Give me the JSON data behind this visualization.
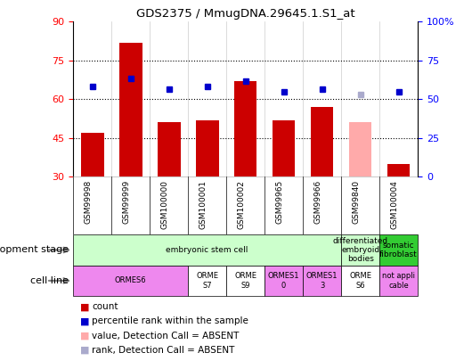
{
  "title": "GDS2375 / MmugDNA.29645.1.S1_at",
  "samples": [
    "GSM99998",
    "GSM99999",
    "GSM100000",
    "GSM100001",
    "GSM100002",
    "GSM99965",
    "GSM99966",
    "GSM99840",
    "GSM100004"
  ],
  "bar_values": [
    47,
    82,
    51,
    52,
    67,
    52,
    57,
    51,
    35
  ],
  "bar_colors": [
    "#cc0000",
    "#cc0000",
    "#cc0000",
    "#cc0000",
    "#cc0000",
    "#cc0000",
    "#cc0000",
    "#ffaaaa",
    "#cc0000"
  ],
  "dot_values": [
    65,
    68,
    64,
    65,
    67,
    63,
    64,
    62,
    63
  ],
  "dot_colors": [
    "#0000cc",
    "#0000cc",
    "#0000cc",
    "#0000cc",
    "#0000cc",
    "#0000cc",
    "#0000cc",
    "#aaaacc",
    "#0000cc"
  ],
  "ylim_left": [
    30,
    90
  ],
  "ylim_right": [
    0,
    100
  ],
  "yticks_left": [
    30,
    45,
    60,
    75,
    90
  ],
  "yticks_right": [
    0,
    25,
    50,
    75,
    100
  ],
  "ytick_labels_right": [
    "0",
    "25",
    "50",
    "75",
    "100%"
  ],
  "hlines": [
    45,
    60,
    75
  ],
  "dev_stage_spans": [
    [
      0,
      7,
      "embryonic stem cell",
      "#ccffcc"
    ],
    [
      7,
      8,
      "differentiated\nembryoid\nbodies",
      "#ccffcc"
    ],
    [
      8,
      9,
      "somatic\nfibroblast",
      "#33cc33"
    ]
  ],
  "cell_line_spans": [
    [
      0,
      3,
      "ORMES6",
      "#ee88ee"
    ],
    [
      3,
      4,
      "ORME\nS7",
      "#ffffff"
    ],
    [
      4,
      5,
      "ORME\nS9",
      "#ffffff"
    ],
    [
      5,
      6,
      "ORMES1\n0",
      "#ee88ee"
    ],
    [
      6,
      7,
      "ORMES1\n3",
      "#ee88ee"
    ],
    [
      7,
      8,
      "ORME\nS6",
      "#ffffff"
    ],
    [
      8,
      9,
      "not appli\ncable",
      "#ee88ee"
    ]
  ],
  "legend_items": [
    {
      "label": "count",
      "color": "#cc0000"
    },
    {
      "label": "percentile rank within the sample",
      "color": "#0000cc"
    },
    {
      "label": "value, Detection Call = ABSENT",
      "color": "#ffaaaa"
    },
    {
      "label": "rank, Detection Call = ABSENT",
      "color": "#aaaacc"
    }
  ],
  "bar_width": 0.6,
  "chart_bg": "#ffffff",
  "tick_area_bg": "#cccccc"
}
